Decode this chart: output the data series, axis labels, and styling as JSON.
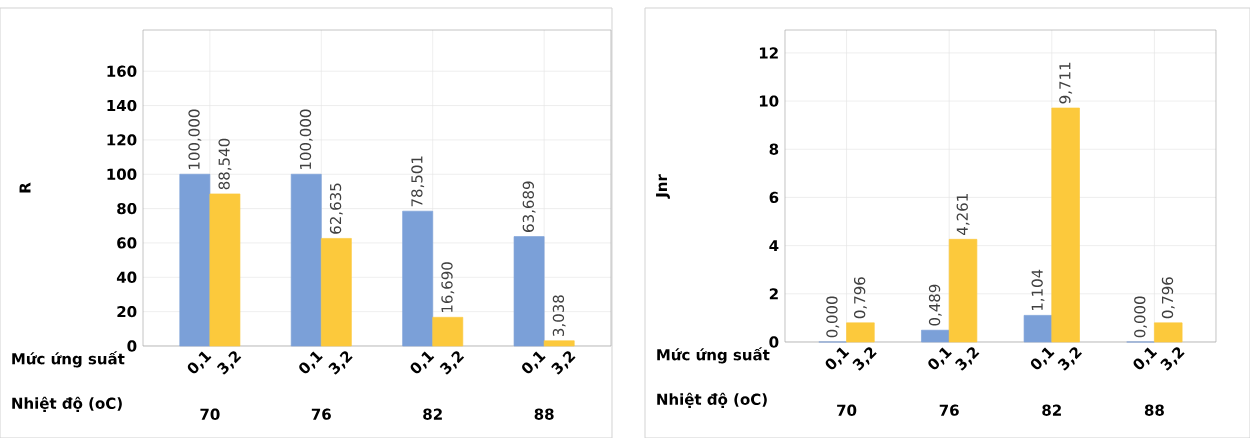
{
  "chart_data": [
    {
      "type": "bar",
      "ylabel": "R",
      "xlabel": "Nhiệt độ (oC)",
      "legend_title": "Mức ứng suất",
      "categories": [
        "70",
        "76",
        "82",
        "88"
      ],
      "series": [
        {
          "name": "0,1",
          "color": "#7ba0d8",
          "values": [
            100,
            100,
            78.501,
            63.689
          ],
          "value_labels": [
            "100,000",
            "100,000",
            "78,501",
            "63,689"
          ]
        },
        {
          "name": "3,2",
          "color": "#fcc93c",
          "values": [
            88.54,
            62.635,
            16.69,
            3.038
          ],
          "value_labels": [
            "88,540",
            "62,635",
            "16,690",
            "3,038"
          ]
        }
      ],
      "ylim": [
        0,
        184
      ],
      "yticks": [
        0,
        20,
        40,
        60,
        80,
        100,
        120,
        140,
        160
      ],
      "grid": true,
      "legend": "bottom"
    },
    {
      "type": "bar",
      "ylabel": "Jnr",
      "xlabel": "Nhiệt độ (oC)",
      "legend_title": "Mức ứng suất",
      "categories": [
        "70",
        "76",
        "82",
        "88"
      ],
      "series": [
        {
          "name": "0,1",
          "color": "#7ba0d8",
          "values": [
            0,
            0.489,
            1.104,
            0
          ],
          "value_labels": [
            "0,000",
            "0,489",
            "1,104",
            "0,000"
          ]
        },
        {
          "name": "3,2",
          "color": "#fcc93c",
          "values": [
            0.796,
            4.261,
            9.711,
            0.796
          ],
          "value_labels": [
            "0,796",
            "4,261",
            "9,711",
            "0,796"
          ]
        }
      ],
      "ylim": [
        0,
        12.95
      ],
      "yticks": [
        0,
        2,
        4,
        6,
        8,
        10,
        12
      ],
      "grid": true,
      "legend": "bottom"
    }
  ]
}
